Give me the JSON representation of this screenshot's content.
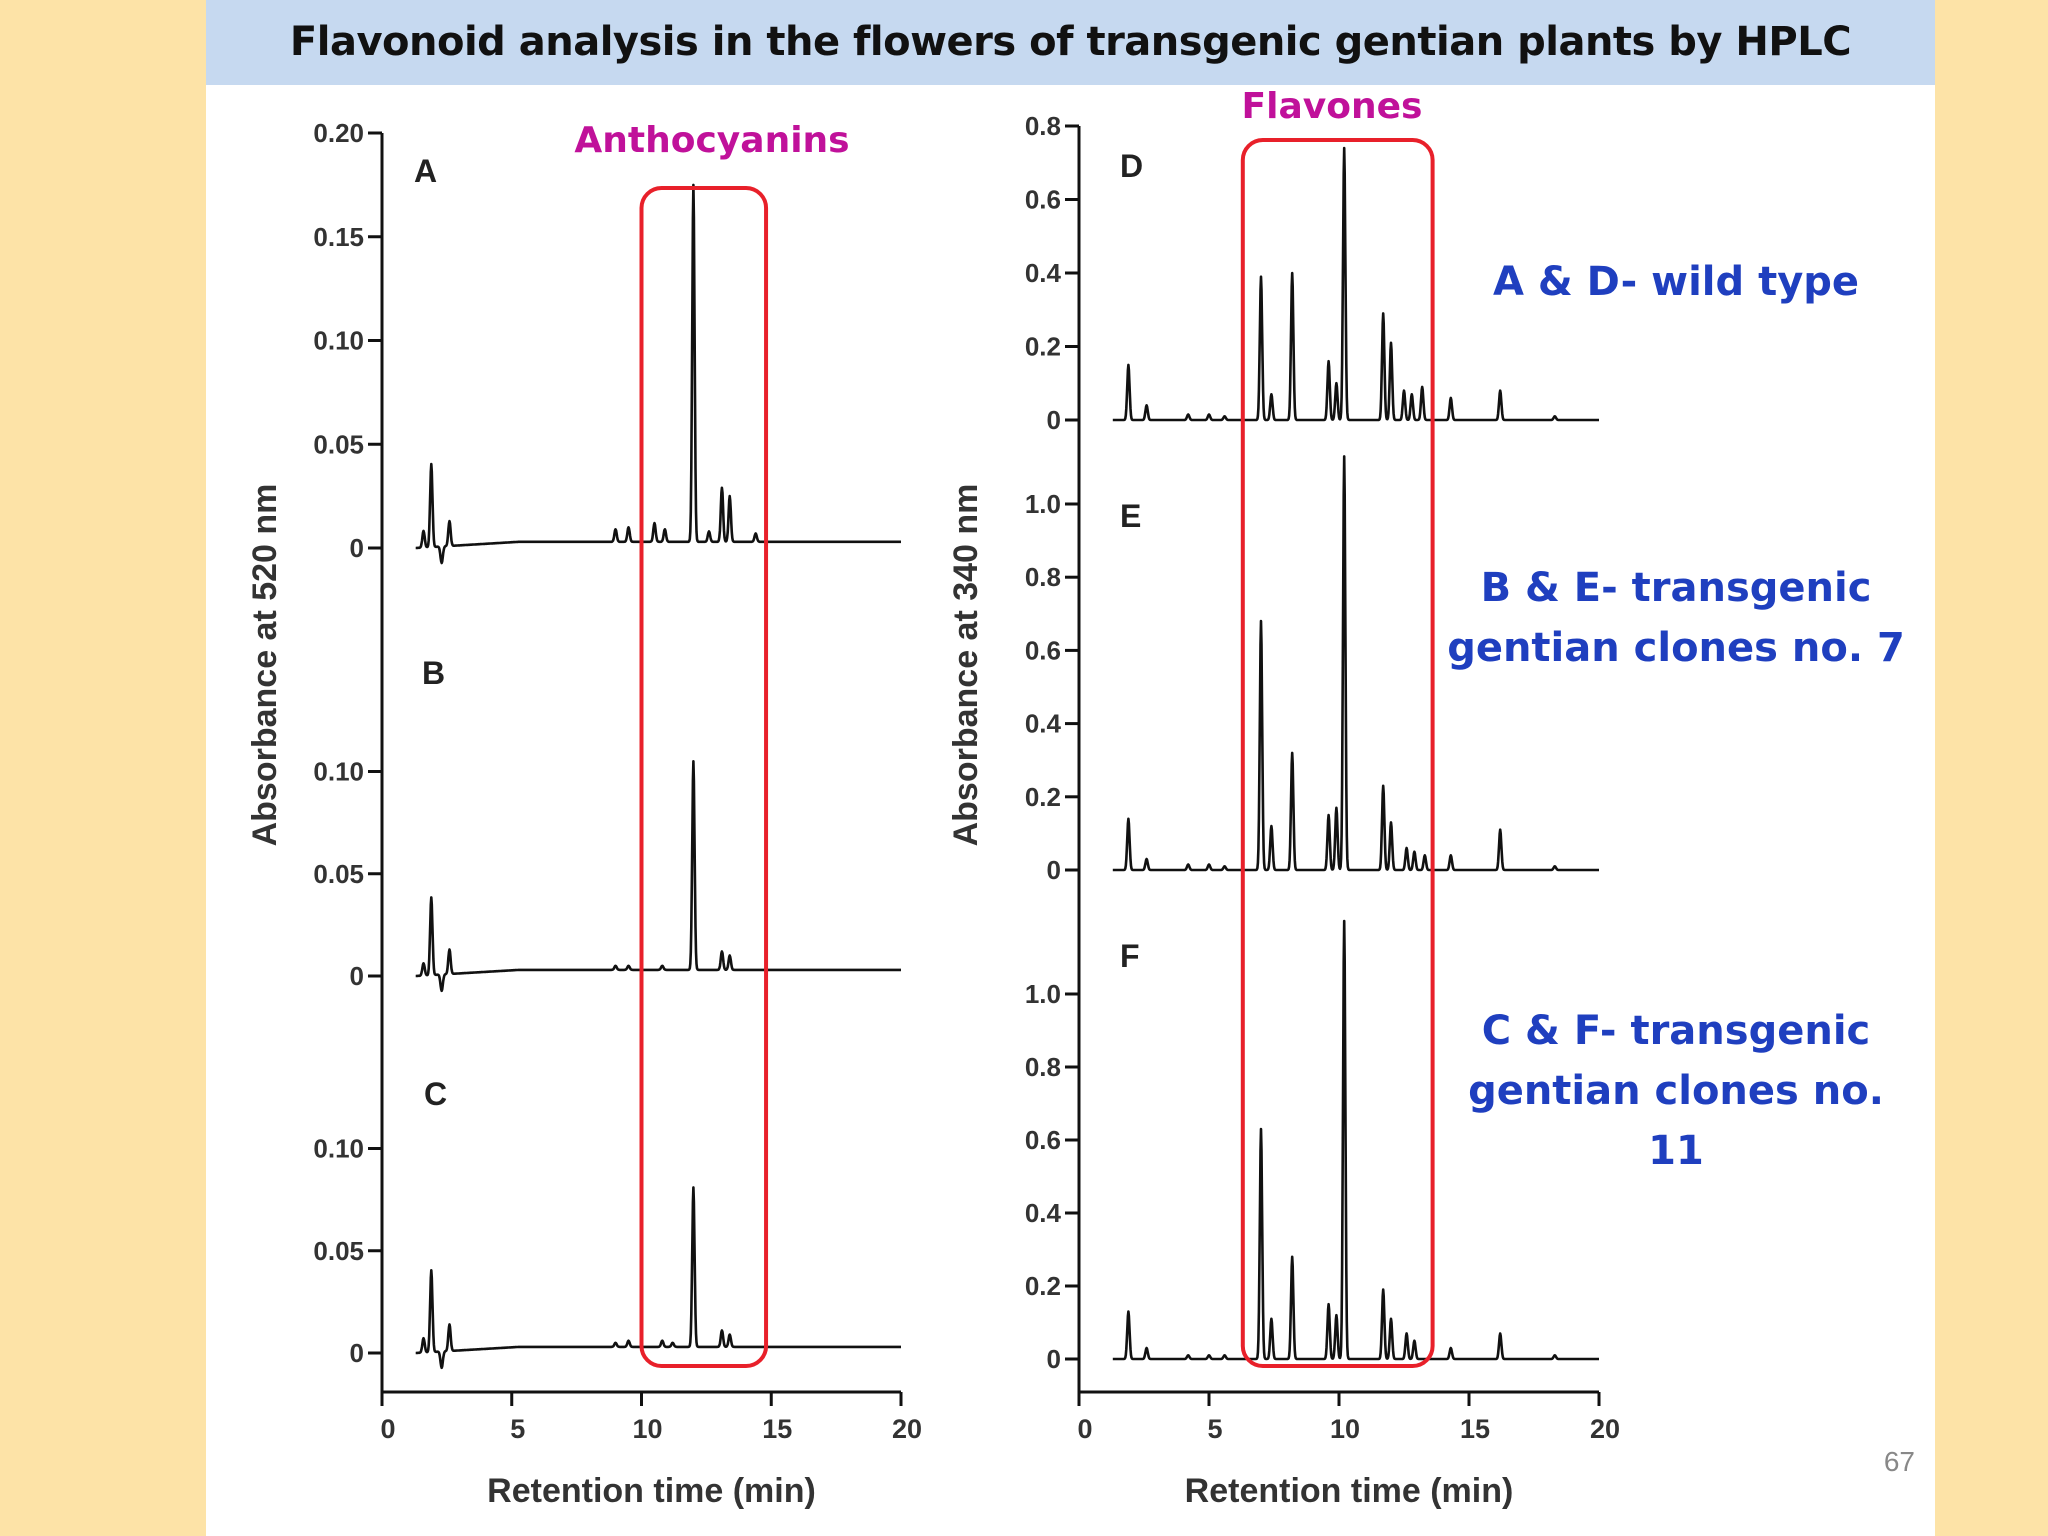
{
  "title": "Flavonoid analysis in the flowers of transgenic gentian plants  by HPLC",
  "region_labels": {
    "anthocyanins": "Anthocyanins",
    "flavones": "Flavones"
  },
  "legend": {
    "ad": "A & D- wild type",
    "be_line1": "B & E- transgenic",
    "be_line2": "gentian clones no. 7",
    "cf_line1": "C & F- transgenic",
    "cf_line2": "gentian clones no. 11"
  },
  "page_number": "67",
  "colors": {
    "highlight_box": "#e8202a",
    "region_label": "#c0119a",
    "legend_text": "#1f3fbf",
    "trace": "#111111",
    "title_bar": "#c6d9f0",
    "page_background": "#fde3a7"
  },
  "chart_data": [
    {
      "type": "line",
      "panel_group": "left",
      "ylabel": "Absorbance at 520 nm",
      "xlabel": "Retention time (min)",
      "xlim": [
        0,
        20
      ],
      "xticks": [
        "0",
        "5",
        "10",
        "15",
        "20"
      ],
      "highlight": {
        "label": "Anthocyanins",
        "x_range": [
          10,
          14.8
        ]
      },
      "panels": [
        {
          "label": "A",
          "ylim": [
            0,
            0.2
          ],
          "yticks": [
            {
              "v": 0,
              "t": "0"
            },
            {
              "v": 0.05,
              "t": "0.05"
            },
            {
              "v": 0.1,
              "t": "0.10"
            },
            {
              "v": 0.15,
              "t": "0.15"
            },
            {
              "v": 0.2,
              "t": "0.20"
            }
          ],
          "peaks": [
            [
              1.6,
              0.008
            ],
            [
              1.9,
              0.04
            ],
            [
              2.3,
              -0.008
            ],
            [
              2.6,
              0.012
            ],
            [
              9.0,
              0.006
            ],
            [
              9.5,
              0.007
            ],
            [
              10.5,
              0.009
            ],
            [
              10.9,
              0.006
            ],
            [
              12.0,
              0.172
            ],
            [
              12.6,
              0.005
            ],
            [
              13.1,
              0.026
            ],
            [
              13.4,
              0.022
            ],
            [
              14.4,
              0.004
            ]
          ]
        },
        {
          "label": "B",
          "ylim": [
            0,
            0.1
          ],
          "yticks": [
            {
              "v": 0,
              "t": "0"
            },
            {
              "v": 0.05,
              "t": "0.05"
            },
            {
              "v": 0.1,
              "t": "0.10"
            }
          ],
          "peaks": [
            [
              1.6,
              0.006
            ],
            [
              1.9,
              0.038
            ],
            [
              2.3,
              -0.008
            ],
            [
              2.6,
              0.012
            ],
            [
              9.0,
              0.002
            ],
            [
              9.5,
              0.002
            ],
            [
              10.8,
              0.002
            ],
            [
              12.0,
              0.102
            ],
            [
              13.1,
              0.009
            ],
            [
              13.4,
              0.007
            ]
          ]
        },
        {
          "label": "C",
          "ylim": [
            0,
            0.1
          ],
          "yticks": [
            {
              "v": 0,
              "t": "0"
            },
            {
              "v": 0.05,
              "t": "0.05"
            },
            {
              "v": 0.1,
              "t": "0.10"
            }
          ],
          "peaks": [
            [
              1.6,
              0.007
            ],
            [
              1.9,
              0.04
            ],
            [
              2.3,
              -0.008
            ],
            [
              2.6,
              0.013
            ],
            [
              9.0,
              0.002
            ],
            [
              9.5,
              0.003
            ],
            [
              10.8,
              0.003
            ],
            [
              11.2,
              0.002
            ],
            [
              12.0,
              0.078
            ],
            [
              13.1,
              0.008
            ],
            [
              13.4,
              0.006
            ]
          ]
        }
      ]
    },
    {
      "type": "line",
      "panel_group": "right",
      "ylabel": "Absorbance at 340 nm",
      "xlabel": "Retention time (min)",
      "xlim": [
        0,
        20
      ],
      "xticks": [
        "0",
        "5",
        "10",
        "15",
        "20"
      ],
      "highlight": {
        "label": "Flavones",
        "x_range": [
          6.3,
          13.6
        ]
      },
      "panels": [
        {
          "label": "D",
          "ylim": [
            0,
            0.8
          ],
          "yticks": [
            {
              "v": 0,
              "t": "0"
            },
            {
              "v": 0.2,
              "t": "0.2"
            },
            {
              "v": 0.4,
              "t": "0.4"
            },
            {
              "v": 0.6,
              "t": "0.6"
            },
            {
              "v": 0.8,
              "t": "0.8"
            }
          ],
          "peaks": [
            [
              1.9,
              0.15
            ],
            [
              2.6,
              0.04
            ],
            [
              4.2,
              0.015
            ],
            [
              5.0,
              0.015
            ],
            [
              5.6,
              0.01
            ],
            [
              7.0,
              0.39
            ],
            [
              7.4,
              0.07
            ],
            [
              8.2,
              0.4
            ],
            [
              9.6,
              0.16
            ],
            [
              9.9,
              0.1
            ],
            [
              10.2,
              0.74
            ],
            [
              11.7,
              0.29
            ],
            [
              12.0,
              0.21
            ],
            [
              12.5,
              0.08
            ],
            [
              12.8,
              0.07
            ],
            [
              13.2,
              0.09
            ],
            [
              14.3,
              0.06
            ],
            [
              16.2,
              0.08
            ],
            [
              18.3,
              0.01
            ]
          ]
        },
        {
          "label": "E",
          "ylim": [
            0,
            1.0
          ],
          "yticks": [
            {
              "v": 0,
              "t": "0"
            },
            {
              "v": 0.2,
              "t": "0.2"
            },
            {
              "v": 0.4,
              "t": "0.4"
            },
            {
              "v": 0.6,
              "t": "0.6"
            },
            {
              "v": 0.8,
              "t": "0.8"
            },
            {
              "v": 1.0,
              "t": "1.0"
            }
          ],
          "peaks": [
            [
              1.9,
              0.14
            ],
            [
              2.6,
              0.03
            ],
            [
              4.2,
              0.015
            ],
            [
              5.0,
              0.015
            ],
            [
              5.6,
              0.01
            ],
            [
              7.0,
              0.68
            ],
            [
              7.4,
              0.12
            ],
            [
              8.2,
              0.32
            ],
            [
              9.6,
              0.15
            ],
            [
              9.9,
              0.17
            ],
            [
              10.2,
              1.13
            ],
            [
              11.7,
              0.23
            ],
            [
              12.0,
              0.13
            ],
            [
              12.6,
              0.06
            ],
            [
              12.9,
              0.05
            ],
            [
              13.3,
              0.04
            ],
            [
              14.3,
              0.04
            ],
            [
              16.2,
              0.11
            ],
            [
              18.3,
              0.01
            ]
          ]
        },
        {
          "label": "F",
          "ylim": [
            0,
            1.0
          ],
          "yticks": [
            {
              "v": 0,
              "t": "0"
            },
            {
              "v": 0.2,
              "t": "0.2"
            },
            {
              "v": 0.4,
              "t": "0.4"
            },
            {
              "v": 0.6,
              "t": "0.6"
            },
            {
              "v": 0.8,
              "t": "0.8"
            },
            {
              "v": 1.0,
              "t": "1.0"
            }
          ],
          "peaks": [
            [
              1.9,
              0.13
            ],
            [
              2.6,
              0.03
            ],
            [
              4.2,
              0.01
            ],
            [
              5.0,
              0.01
            ],
            [
              5.6,
              0.01
            ],
            [
              7.0,
              0.63
            ],
            [
              7.4,
              0.11
            ],
            [
              8.2,
              0.28
            ],
            [
              9.6,
              0.15
            ],
            [
              9.9,
              0.12
            ],
            [
              10.2,
              1.2
            ],
            [
              11.7,
              0.19
            ],
            [
              12.0,
              0.11
            ],
            [
              12.6,
              0.07
            ],
            [
              12.9,
              0.05
            ],
            [
              14.3,
              0.03
            ],
            [
              16.2,
              0.07
            ],
            [
              18.3,
              0.01
            ]
          ]
        }
      ]
    }
  ]
}
